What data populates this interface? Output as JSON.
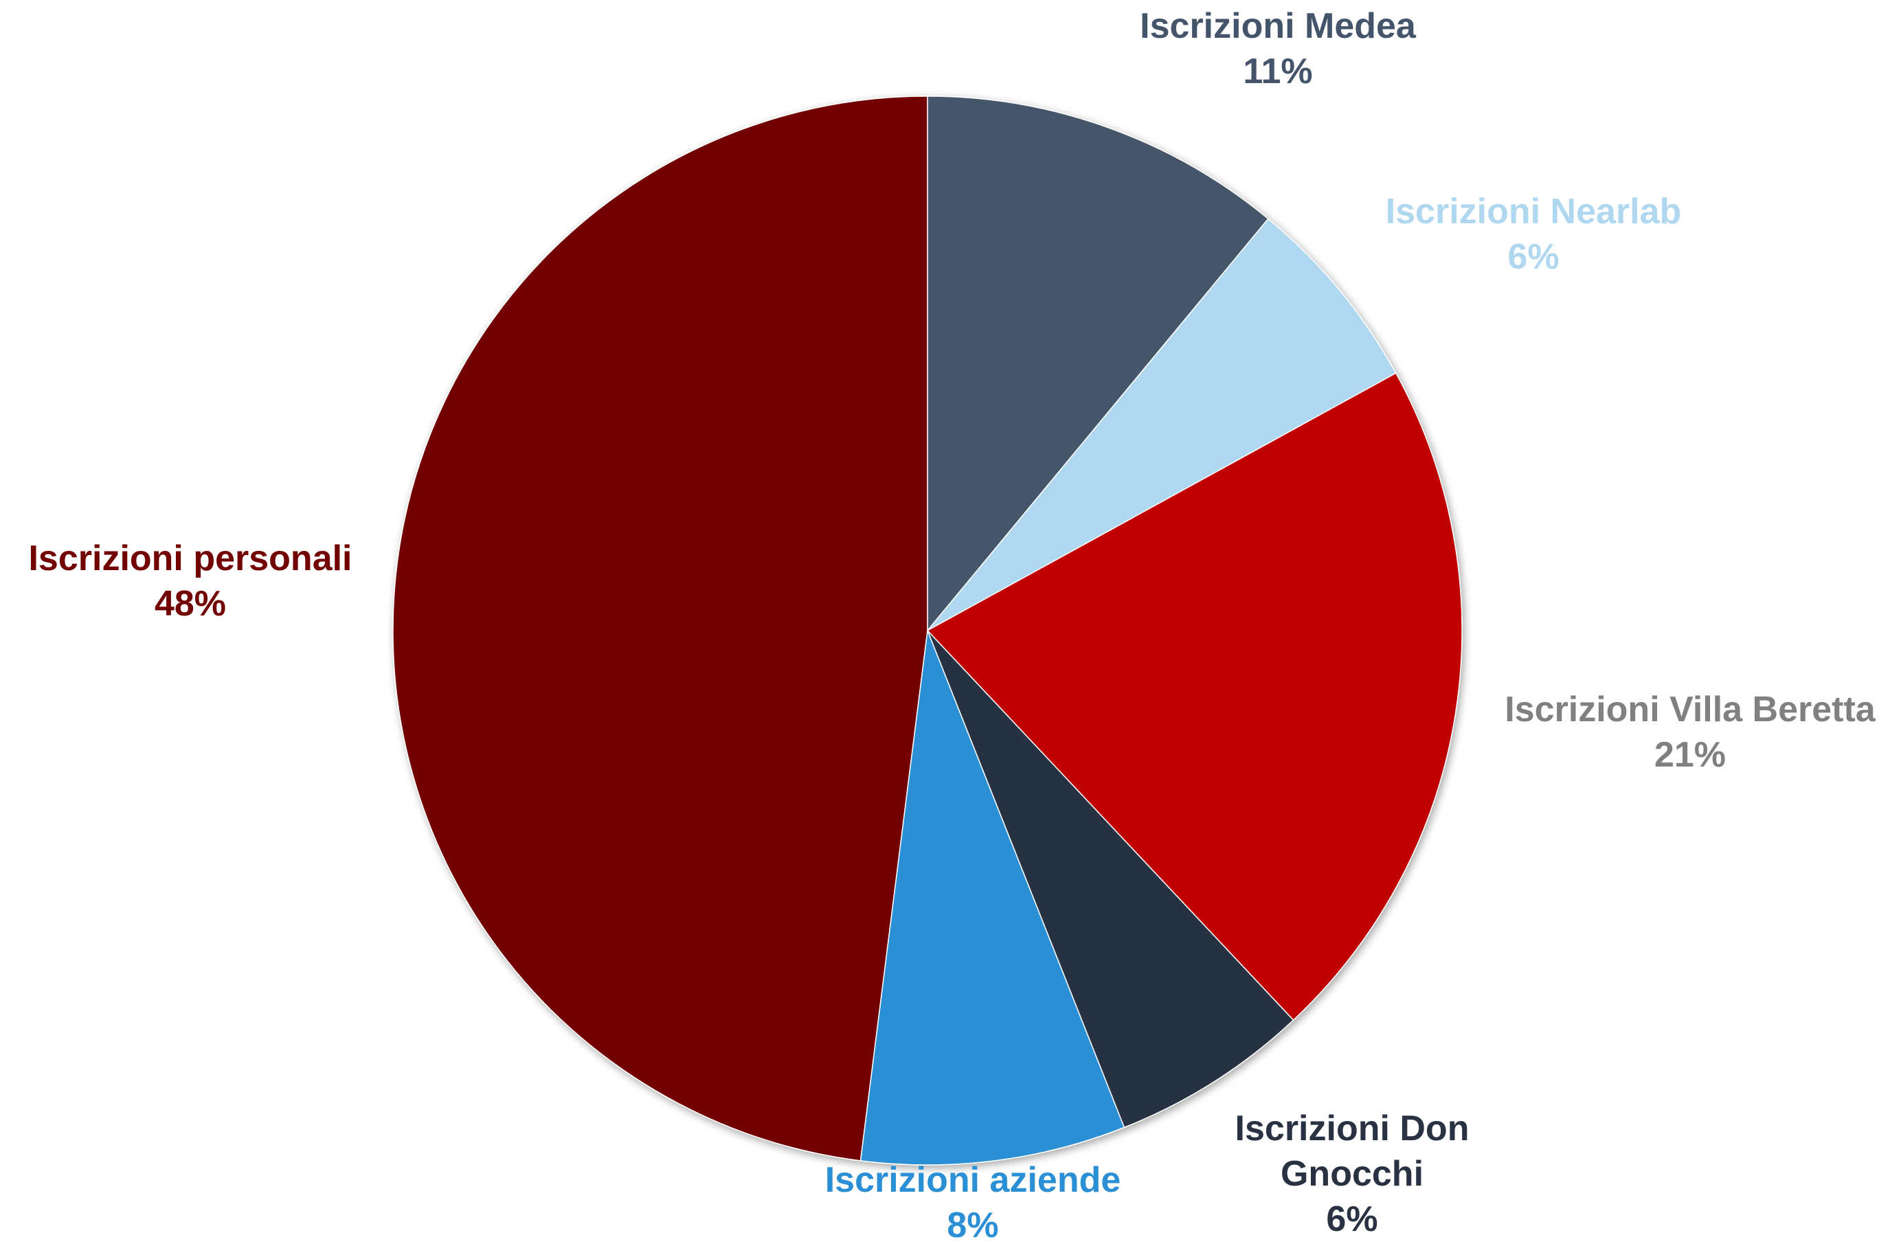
{
  "chart_data": {
    "type": "pie",
    "start_angle_deg": 0,
    "direction": "clockwise",
    "slices": [
      {
        "label": "Iscrizioni Medea",
        "value": 11,
        "percent_label": "11%",
        "color": "#44546A",
        "label_color": "#44546A"
      },
      {
        "label": "Iscrizioni Nearlab",
        "value": 6,
        "percent_label": "6%",
        "color": "#B0D7F0",
        "label_color": "#B0D7F0"
      },
      {
        "label": "Iscrizioni Villa Beretta",
        "value": 21,
        "percent_label": "21%",
        "color": "#C00000",
        "label_color": "#808080"
      },
      {
        "label": "Iscrizioni Don Gnocchi",
        "value": 6,
        "percent_label": "6%",
        "color": "#283242",
        "label_color": "#283242"
      },
      {
        "label": "Iscrizioni aziende",
        "value": 8,
        "percent_label": "8%",
        "color": "#2A8FD4",
        "label_color": "#2A8FD4"
      },
      {
        "label": "Iscrizioni personali",
        "value": 48,
        "percent_label": "48%",
        "color": "#730000",
        "label_color": "#730000"
      }
    ]
  }
}
